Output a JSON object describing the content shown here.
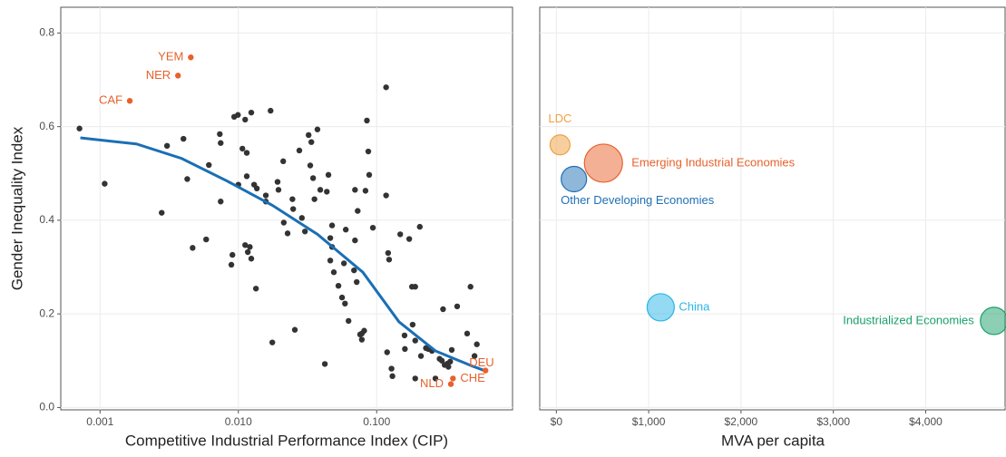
{
  "chart_data": [
    {
      "type": "scatter",
      "x_label": "Competitive Industrial Performance Index (CIP)",
      "y_label": "Gender Inequality Index",
      "log_x": true,
      "grid": true,
      "xlim": [
        0.00052,
        0.96
      ],
      "ylim": [
        -0.005,
        0.855
      ],
      "xticks": [
        {
          "value": 0.001,
          "label": "0.001"
        },
        {
          "value": 0.01,
          "label": "0.010"
        },
        {
          "value": 0.1,
          "label": "0.100"
        }
      ],
      "yticks": [
        {
          "value": 0,
          "label": "0.0"
        },
        {
          "value": 0.2,
          "label": "0.2"
        },
        {
          "value": 0.4,
          "label": "0.4"
        },
        {
          "value": 0.6,
          "label": "0.6"
        },
        {
          "value": 0.8,
          "label": "0.8"
        }
      ],
      "points": {
        "color": "#333333",
        "x": [
          0.00071,
          0.00108,
          0.00279,
          0.00305,
          0.00401,
          0.00427,
          0.00467,
          0.00612,
          0.00585,
          0.00734,
          0.00745,
          0.00745,
          0.00906,
          0.0089,
          0.00933,
          0.00993,
          0.01,
          0.0107,
          0.0112,
          0.0115,
          0.0115,
          0.0112,
          0.0121,
          0.0117,
          0.0124,
          0.0124,
          0.013,
          0.0136,
          0.0134,
          0.0158,
          0.0158,
          0.0171,
          0.0176,
          0.0192,
          0.0195,
          0.0211,
          0.0213,
          0.0227,
          0.0249,
          0.0246,
          0.0256,
          0.0276,
          0.0288,
          0.0303,
          0.0322,
          0.0331,
          0.0337,
          0.0347,
          0.0355,
          0.0373,
          0.0391,
          0.0422,
          0.0436,
          0.0448,
          0.0462,
          0.0462,
          0.0476,
          0.0476,
          0.049,
          0.0529,
          0.0562,
          0.058,
          0.059,
          0.0598,
          0.0626,
          0.0686,
          0.0697,
          0.0697,
          0.0717,
          0.0729,
          0.0759,
          0.0781,
          0.0812,
          0.0781,
          0.085,
          0.087,
          0.083,
          0.0883,
          0.0939,
          0.117,
          0.117,
          0.121,
          0.123,
          0.119,
          0.128,
          0.13,
          0.148,
          0.159,
          0.16,
          0.172,
          0.18,
          0.19,
          0.182,
          0.19,
          0.19,
          0.205,
          0.209,
          0.227,
          0.236,
          0.251,
          0.266,
          0.285,
          0.302,
          0.296,
          0.31,
          0.326,
          0.34,
          0.33,
          0.349,
          0.382,
          0.451,
          0.477,
          0.53,
          0.51
        ],
        "y": [
          0.596,
          0.478,
          0.416,
          0.559,
          0.574,
          0.488,
          0.341,
          0.518,
          0.359,
          0.584,
          0.565,
          0.44,
          0.326,
          0.305,
          0.621,
          0.625,
          0.476,
          0.553,
          0.615,
          0.544,
          0.494,
          0.347,
          0.343,
          0.332,
          0.318,
          0.63,
          0.476,
          0.468,
          0.254,
          0.453,
          0.44,
          0.634,
          0.139,
          0.482,
          0.465,
          0.526,
          0.395,
          0.372,
          0.424,
          0.445,
          0.166,
          0.549,
          0.405,
          0.376,
          0.582,
          0.517,
          0.567,
          0.49,
          0.445,
          0.594,
          0.465,
          0.093,
          0.461,
          0.497,
          0.314,
          0.362,
          0.389,
          0.343,
          0.289,
          0.26,
          0.235,
          0.308,
          0.222,
          0.38,
          0.185,
          0.293,
          0.465,
          0.357,
          0.268,
          0.42,
          0.156,
          0.158,
          0.164,
          0.145,
          0.613,
          0.547,
          0.463,
          0.497,
          0.384,
          0.453,
          0.684,
          0.33,
          0.316,
          0.118,
          0.083,
          0.067,
          0.37,
          0.154,
          0.125,
          0.36,
          0.258,
          0.258,
          0.177,
          0.143,
          0.062,
          0.386,
          0.11,
          0.127,
          0.125,
          0.121,
          0.062,
          0.104,
          0.21,
          0.1,
          0.091,
          0.094,
          0.098,
          0.087,
          0.123,
          0.216,
          0.158,
          0.258,
          0.135,
          0.11
        ]
      },
      "highlighted": {
        "color": "#e8612c",
        "labels": [
          "YEM",
          "NER",
          "CAF",
          "DEU",
          "CHE",
          "NLD"
        ],
        "x": [
          0.00453,
          0.00366,
          0.00164,
          0.612,
          0.356,
          0.344
        ],
        "y": [
          0.748,
          0.709,
          0.655,
          0.079,
          0.062,
          0.05
        ]
      },
      "trend": {
        "color": "#1a6fb5",
        "x": [
          0.00072,
          0.00183,
          0.00389,
          0.00827,
          0.0176,
          0.0373,
          0.0794,
          0.145,
          0.266,
          0.486,
          0.628
        ],
        "y": [
          0.576,
          0.563,
          0.532,
          0.484,
          0.432,
          0.37,
          0.289,
          0.183,
          0.121,
          0.089,
          0.077
        ]
      }
    },
    {
      "type": "bubble",
      "x_label": "MVA per capita",
      "grid": true,
      "xlim": [
        -180,
        4860
      ],
      "xticks": [
        {
          "value": 0,
          "label": "$0"
        },
        {
          "value": 1000,
          "label": "$1,000"
        },
        {
          "value": 2000,
          "label": "$2,000"
        },
        {
          "value": 3000,
          "label": "$3,000"
        },
        {
          "value": 4000,
          "label": "$4,000"
        }
      ],
      "labels": [
        "LDC",
        "Emerging Industrial Economies",
        "Other Developing Economies",
        "China",
        "Industrialized Economies"
      ],
      "x": [
        40,
        510,
        190,
        1130,
        4740
      ],
      "y": [
        0.561,
        0.522,
        0.488,
        0.214,
        0.185
      ],
      "sizes": [
        121,
        441,
        196,
        225,
        225
      ],
      "colors": [
        "#f0a040",
        "#e8612c",
        "#1f6fb5",
        "#29b6e8",
        "#1aa06a"
      ]
    }
  ]
}
